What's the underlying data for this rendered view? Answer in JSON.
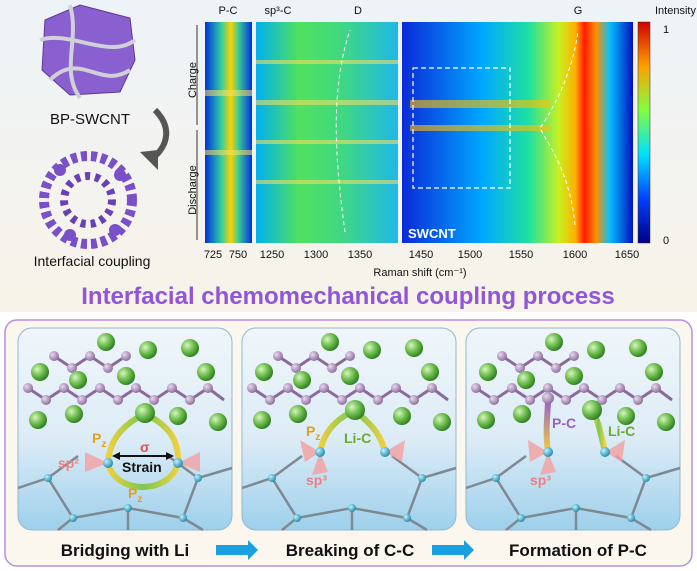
{
  "top_left": {
    "label_1": "BP-SWCNT",
    "label_2": "Interfacial coupling"
  },
  "raman": {
    "panel_labels": [
      "P-C",
      "sp³-C",
      "D",
      "G"
    ],
    "colorbar_title": "Intensity (a.u.)",
    "colorbar_max": 1,
    "colorbar_min": 0,
    "y_labels": [
      "Charge",
      "Discharge"
    ],
    "inset_label": "SWCNT",
    "x_ticks": [
      725,
      750,
      1250,
      1300,
      1350,
      1450,
      1500,
      1550,
      1600,
      1650
    ],
    "x_label": "Raman shift (cm⁻¹)"
  },
  "title": "Interfacial chemomechanical coupling process",
  "panels": [
    {
      "caption": "Bridging with Li",
      "labels": {
        "pz_top": {
          "main": "P",
          "sub": "z"
        },
        "sigma": "σ",
        "strain": "Strain",
        "sp": "sp²",
        "pz_bottom": {
          "main": "P",
          "sub": "z"
        }
      }
    },
    {
      "caption": "Breaking of C-C",
      "labels": {
        "pz_top": {
          "main": "P",
          "sub": "z"
        },
        "li_c": "Li-C",
        "sp": "sp³"
      }
    },
    {
      "caption": "Formation of P-C",
      "labels": {
        "p_c": "P-C",
        "li_c": "Li-C",
        "sp": "sp³"
      }
    }
  ]
}
